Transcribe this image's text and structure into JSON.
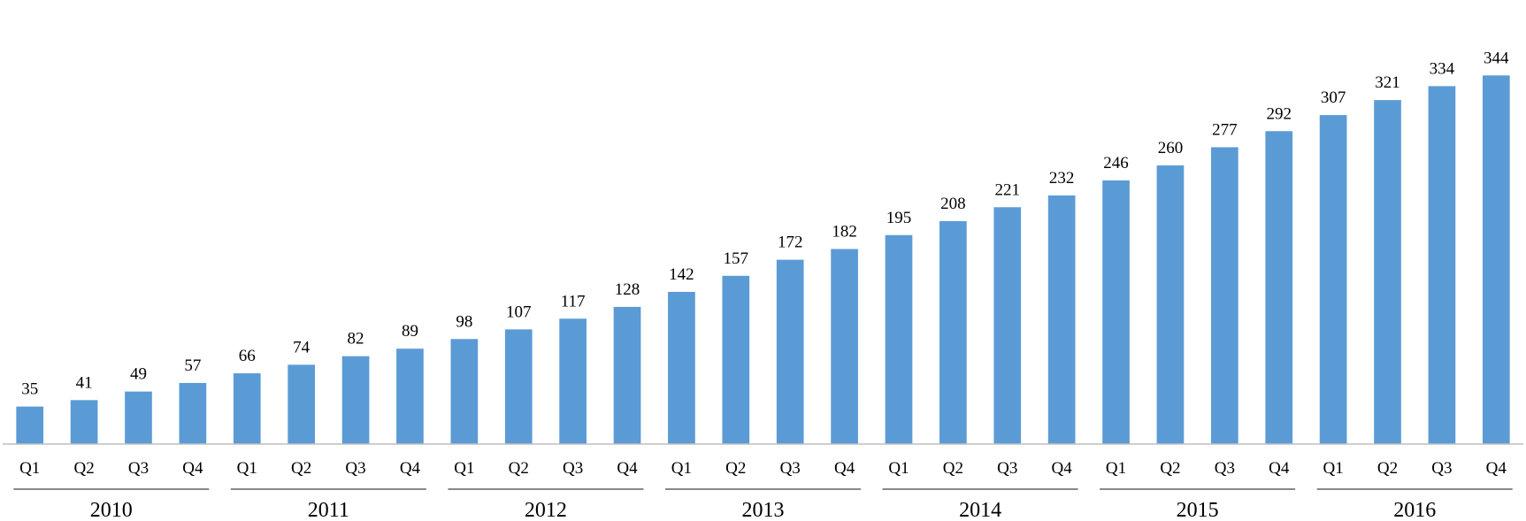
{
  "chart_data": {
    "type": "bar",
    "title": "",
    "xlabel": "",
    "ylabel": "",
    "legend": "none",
    "grid": false,
    "ylim": [
      0,
      350
    ],
    "bar_color": "#5b9bd5",
    "categories": [
      "Q1",
      "Q2",
      "Q3",
      "Q4",
      "Q1",
      "Q2",
      "Q3",
      "Q4",
      "Q1",
      "Q2",
      "Q3",
      "Q4",
      "Q1",
      "Q2",
      "Q3",
      "Q4",
      "Q1",
      "Q2",
      "Q3",
      "Q4",
      "Q1",
      "Q2",
      "Q3",
      "Q4",
      "Q1",
      "Q2",
      "Q3",
      "Q4"
    ],
    "groups": [
      "2010",
      "2011",
      "2012",
      "2013",
      "2014",
      "2015",
      "2016"
    ],
    "values": [
      35,
      41,
      49,
      57,
      66,
      74,
      82,
      89,
      98,
      107,
      117,
      128,
      142,
      157,
      172,
      182,
      195,
      208,
      221,
      232,
      246,
      260,
      277,
      292,
      307,
      321,
      334,
      344
    ]
  }
}
